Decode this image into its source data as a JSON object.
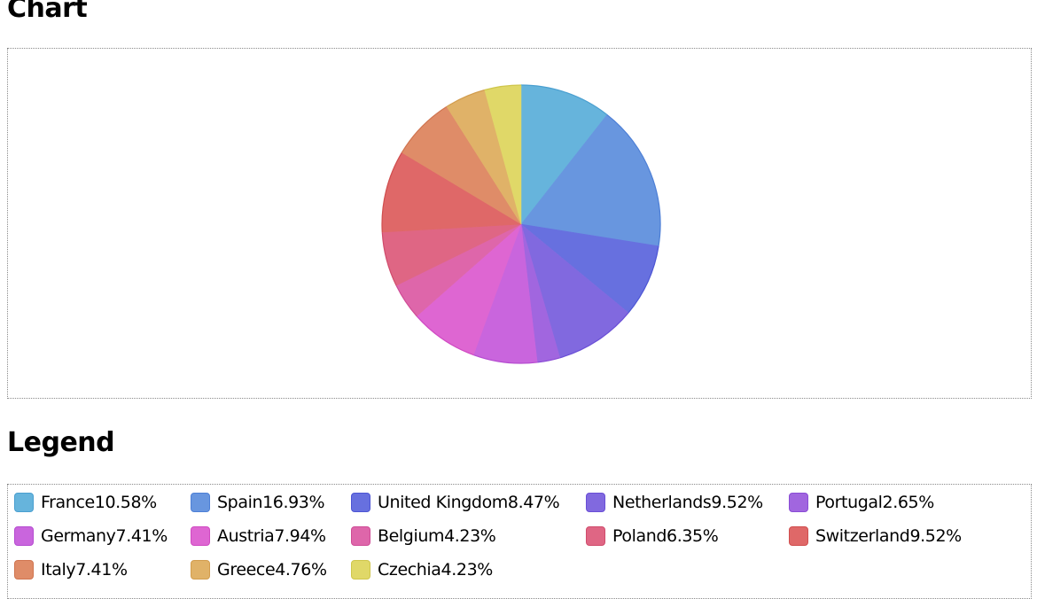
{
  "headings": {
    "chart": "Chart",
    "legend": "Legend"
  },
  "chart_data": {
    "type": "pie",
    "title": "",
    "start_angle": "12 o'clock, clockwise",
    "slices": [
      {
        "label": "France",
        "value": 10.58,
        "display": "10.58%",
        "color": "#66b4dc",
        "stroke": "#4a9fd0"
      },
      {
        "label": "Spain",
        "value": 16.93,
        "display": "16.93%",
        "color": "#6896df",
        "stroke": "#4d7fd6"
      },
      {
        "label": "United Kingdom",
        "value": 8.47,
        "display": "8.47%",
        "color": "#6770df",
        "stroke": "#4d55d4"
      },
      {
        "label": "Netherlands",
        "value": 9.52,
        "display": "9.52%",
        "color": "#8169df",
        "stroke": "#6a4fd6"
      },
      {
        "label": "Portugal",
        "value": 2.65,
        "display": "2.65%",
        "color": "#a166df",
        "stroke": "#8a4cd5"
      },
      {
        "label": "Germany",
        "value": 7.41,
        "display": "7.41%",
        "color": "#c965dd",
        "stroke": "#b54cd0"
      },
      {
        "label": "Austria",
        "value": 7.94,
        "display": "7.94%",
        "color": "#de66d2",
        "stroke": "#d04ac2"
      },
      {
        "label": "Belgium",
        "value": 4.23,
        "display": "4.23%",
        "color": "#de66aa",
        "stroke": "#cf4c96"
      },
      {
        "label": "Poland",
        "value": 6.35,
        "display": "6.35%",
        "color": "#df6684",
        "stroke": "#d04c6c"
      },
      {
        "label": "Switzerland",
        "value": 9.52,
        "display": "9.52%",
        "color": "#df6868",
        "stroke": "#d04e4e"
      },
      {
        "label": "Italy",
        "value": 7.41,
        "display": "7.41%",
        "color": "#df8c68",
        "stroke": "#d07550"
      },
      {
        "label": "Greece",
        "value": 4.76,
        "display": "4.76%",
        "color": "#e0b268",
        "stroke": "#d29d4e"
      },
      {
        "label": "Czechia",
        "value": 4.23,
        "display": "4.23%",
        "color": "#e0d868",
        "stroke": "#cfc64c"
      }
    ],
    "legend_placement": "bottom"
  }
}
